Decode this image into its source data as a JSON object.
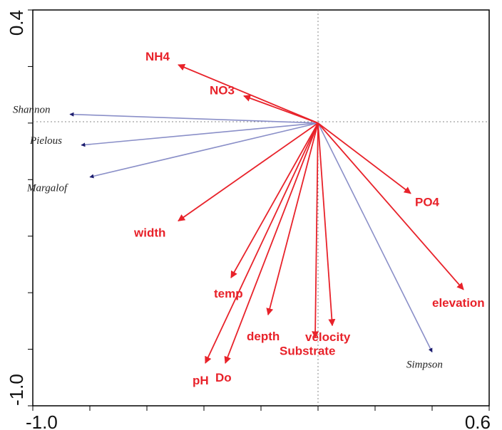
{
  "chart_data": {
    "type": "biplot",
    "xlim": [
      -1.0,
      0.6
    ],
    "ylim": [
      -1.0,
      0.4
    ],
    "x_tick_labels": [
      {
        "value": -1.0,
        "label": "-1.0"
      },
      {
        "value": 0.6,
        "label": "0.6"
      }
    ],
    "y_tick_labels": [
      {
        "value": 0.4,
        "label": "0.4"
      },
      {
        "value": -1.0,
        "label": "-1.0"
      }
    ],
    "reference_lines": {
      "x": 0,
      "y": 0,
      "style": "dotted"
    },
    "colors": {
      "environment": "#e8222a",
      "species": "#8a8fc8",
      "species_head": "#1c1c6e",
      "axes": "#000000"
    },
    "environment_vectors": [
      {
        "name": "NH4",
        "x": -0.49,
        "y": 0.206
      },
      {
        "name": "NO3",
        "x": -0.26,
        "y": 0.096
      },
      {
        "name": "PO4",
        "x": 0.325,
        "y": -0.249
      },
      {
        "name": "width",
        "x": -0.49,
        "y": -0.346
      },
      {
        "name": "temp",
        "x": -0.305,
        "y": -0.547
      },
      {
        "name": "depth",
        "x": -0.175,
        "y": -0.678
      },
      {
        "name": "velocity",
        "x": 0.05,
        "y": -0.716
      },
      {
        "name": "Substrate",
        "x": -0.01,
        "y": -0.759
      },
      {
        "name": "pH",
        "x": -0.395,
        "y": -0.849
      },
      {
        "name": "Do",
        "x": -0.325,
        "y": -0.849
      },
      {
        "name": "elevation",
        "x": 0.51,
        "y": -0.589
      }
    ],
    "species_vectors": [
      {
        "name": "Shannon",
        "x": -0.87,
        "y": 0.031
      },
      {
        "name": "Pielous",
        "x": -0.83,
        "y": -0.078
      },
      {
        "name": "Margalof",
        "x": -0.8,
        "y": -0.191
      },
      {
        "name": "Simpson",
        "x": 0.4,
        "y": -0.81
      }
    ]
  }
}
